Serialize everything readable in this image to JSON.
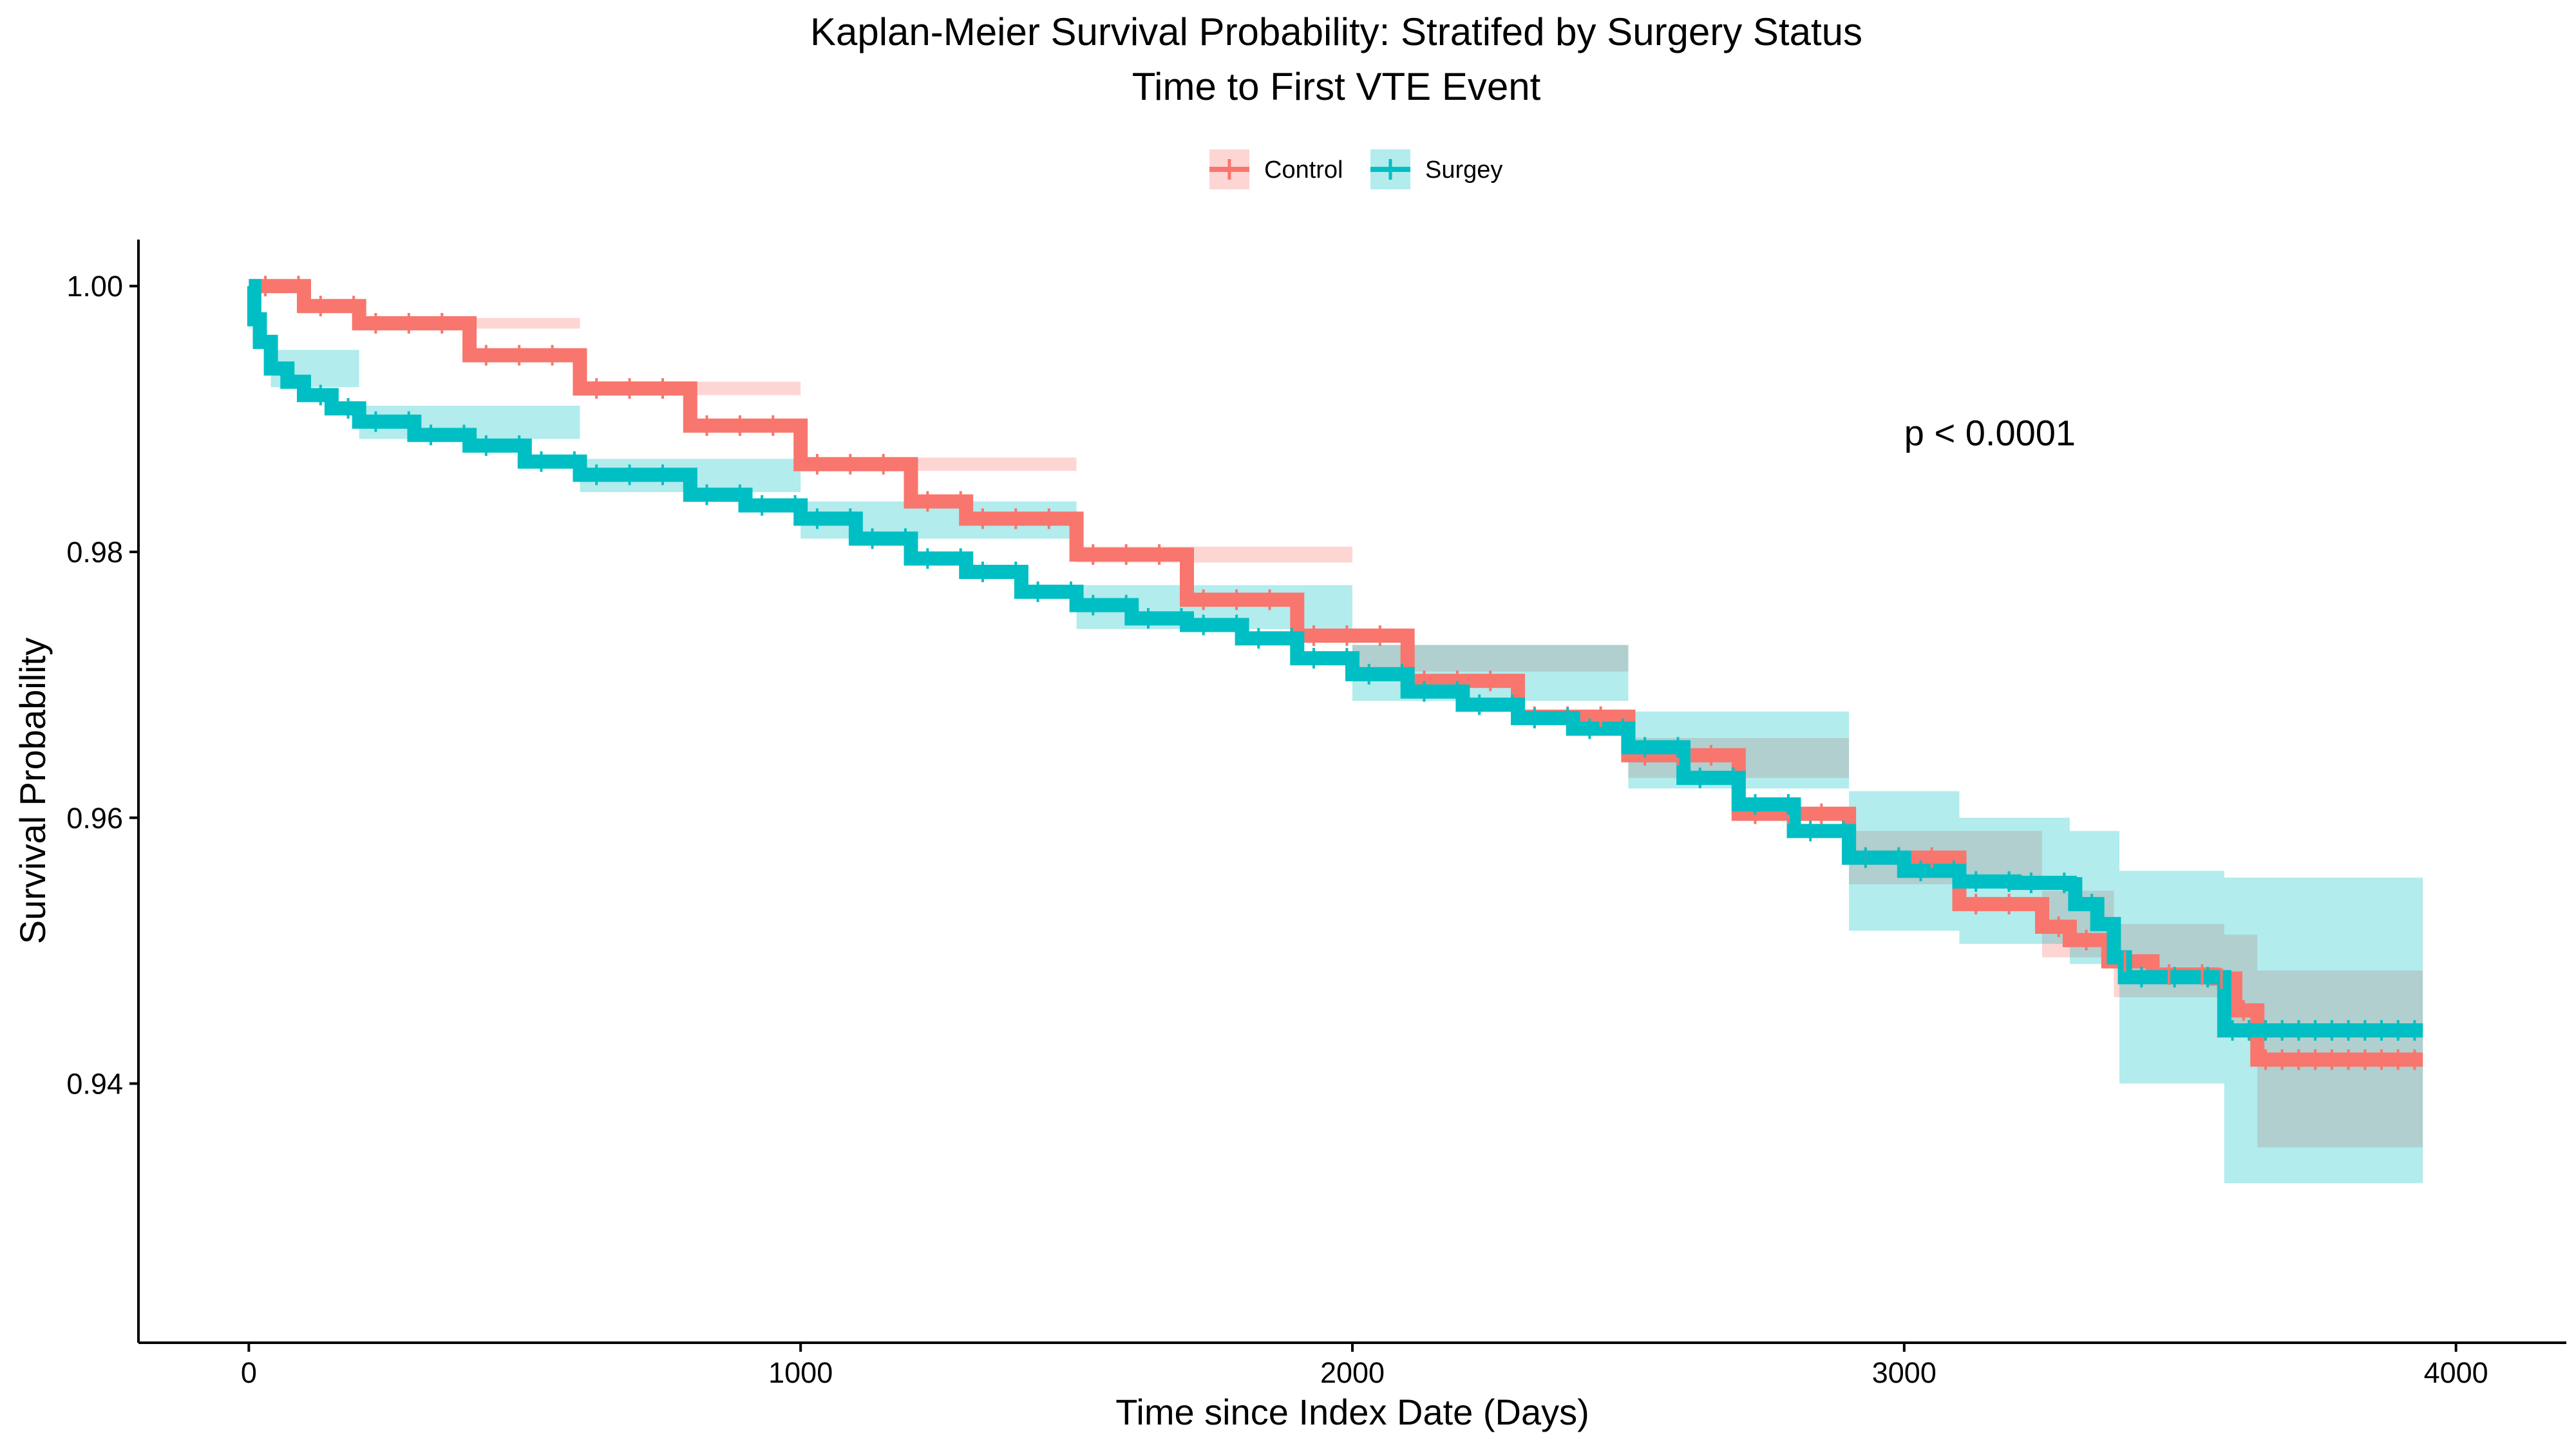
{
  "chart_data": {
    "type": "line",
    "subtype": "kaplan-meier step survival curve with confidence bands and censor marks",
    "title": "Kaplan-Meier Survival Probability: Stratifed by Surgery Status",
    "subtitle": "Time to First VTE Event",
    "xlabel": "Time since Index Date (Days)",
    "ylabel": "Survival Probability",
    "xlim": [
      -200,
      4200
    ],
    "ylim": [
      0.9205,
      1.0035
    ],
    "x_ticks": [
      0,
      1000,
      2000,
      3000,
      4000
    ],
    "x_tick_labels": [
      "0",
      "1000",
      "2000",
      "3000",
      "4000"
    ],
    "y_ticks": [
      0.94,
      0.96,
      0.98,
      1.0
    ],
    "y_tick_labels": [
      "0.94",
      "0.96",
      "0.98",
      "1.00"
    ],
    "grid": false,
    "legend_position": "top",
    "annotation": "p < 0.0001",
    "annotation_position": {
      "x": 3000,
      "y": 0.989
    },
    "series": [
      {
        "name": "Control",
        "color": "#F8766D",
        "band_color": "#F8766D",
        "points": [
          [
            0,
            1.0
          ],
          [
            100,
            0.9985
          ],
          [
            200,
            0.9972
          ],
          [
            400,
            0.9948
          ],
          [
            600,
            0.9923
          ],
          [
            800,
            0.9895
          ],
          [
            1000,
            0.9866
          ],
          [
            1200,
            0.9838
          ],
          [
            1300,
            0.9825
          ],
          [
            1500,
            0.9798
          ],
          [
            1700,
            0.9764
          ],
          [
            1900,
            0.9737
          ],
          [
            2100,
            0.9703
          ],
          [
            2300,
            0.9676
          ],
          [
            2500,
            0.9647
          ],
          [
            2700,
            0.9603
          ],
          [
            2900,
            0.957
          ],
          [
            3100,
            0.9535
          ],
          [
            3250,
            0.9518
          ],
          [
            3300,
            0.9508
          ],
          [
            3370,
            0.9492
          ],
          [
            3450,
            0.9482
          ],
          [
            3560,
            0.9479
          ],
          [
            3600,
            0.9455
          ],
          [
            3640,
            0.9418
          ],
          [
            3940,
            0.9418
          ]
        ],
        "ci_upper": [
          [
            0,
            1.0
          ],
          [
            200,
            0.9976
          ],
          [
            600,
            0.9928
          ],
          [
            1000,
            0.9871
          ],
          [
            1500,
            0.9804
          ],
          [
            2000,
            0.973
          ],
          [
            2500,
            0.966
          ],
          [
            2900,
            0.959
          ],
          [
            3250,
            0.9545
          ],
          [
            3380,
            0.952
          ],
          [
            3580,
            0.9512
          ],
          [
            3640,
            0.9485
          ],
          [
            3940,
            0.9485
          ]
        ],
        "ci_lower": [
          [
            0,
            1.0
          ],
          [
            200,
            0.9968
          ],
          [
            600,
            0.9918
          ],
          [
            1000,
            0.9861
          ],
          [
            1500,
            0.9792
          ],
          [
            2000,
            0.971
          ],
          [
            2500,
            0.963
          ],
          [
            2900,
            0.955
          ],
          [
            3250,
            0.9495
          ],
          [
            3380,
            0.9465
          ],
          [
            3580,
            0.944
          ],
          [
            3640,
            0.9352
          ],
          [
            3940,
            0.9352
          ]
        ]
      },
      {
        "name": "Surgey",
        "color": "#00BFC4",
        "band_color": "#00BFC4",
        "points": [
          [
            0,
            1.0
          ],
          [
            10,
            0.9975
          ],
          [
            20,
            0.9958
          ],
          [
            40,
            0.9938
          ],
          [
            70,
            0.9928
          ],
          [
            100,
            0.9918
          ],
          [
            150,
            0.9908
          ],
          [
            200,
            0.9898
          ],
          [
            300,
            0.9888
          ],
          [
            400,
            0.988
          ],
          [
            500,
            0.9868
          ],
          [
            600,
            0.9858
          ],
          [
            800,
            0.9843
          ],
          [
            900,
            0.9835
          ],
          [
            1000,
            0.9825
          ],
          [
            1100,
            0.981
          ],
          [
            1200,
            0.9795
          ],
          [
            1300,
            0.9785
          ],
          [
            1400,
            0.977
          ],
          [
            1500,
            0.976
          ],
          [
            1600,
            0.975
          ],
          [
            1700,
            0.9745
          ],
          [
            1800,
            0.9735
          ],
          [
            1900,
            0.972
          ],
          [
            2000,
            0.9708
          ],
          [
            2100,
            0.9695
          ],
          [
            2200,
            0.9685
          ],
          [
            2300,
            0.9675
          ],
          [
            2400,
            0.9667
          ],
          [
            2500,
            0.9653
          ],
          [
            2600,
            0.963
          ],
          [
            2700,
            0.961
          ],
          [
            2800,
            0.959
          ],
          [
            2900,
            0.957
          ],
          [
            3000,
            0.956
          ],
          [
            3100,
            0.9552
          ],
          [
            3200,
            0.9551
          ],
          [
            3300,
            0.955
          ],
          [
            3310,
            0.9535
          ],
          [
            3350,
            0.952
          ],
          [
            3380,
            0.9495
          ],
          [
            3400,
            0.948
          ],
          [
            3570,
            0.948
          ],
          [
            3580,
            0.944
          ],
          [
            3940,
            0.944
          ]
        ],
        "ci_upper": [
          [
            0,
            1.0
          ],
          [
            40,
            0.9952
          ],
          [
            200,
            0.991
          ],
          [
            600,
            0.987
          ],
          [
            1000,
            0.9838
          ],
          [
            1500,
            0.9775
          ],
          [
            2000,
            0.973
          ],
          [
            2500,
            0.968
          ],
          [
            2900,
            0.962
          ],
          [
            3100,
            0.96
          ],
          [
            3300,
            0.959
          ],
          [
            3390,
            0.956
          ],
          [
            3580,
            0.9555
          ],
          [
            3940,
            0.9555
          ]
        ],
        "ci_lower": [
          [
            0,
            1.0
          ],
          [
            40,
            0.9924
          ],
          [
            200,
            0.9885
          ],
          [
            600,
            0.9845
          ],
          [
            1000,
            0.981
          ],
          [
            1500,
            0.9742
          ],
          [
            2000,
            0.9688
          ],
          [
            2500,
            0.9622
          ],
          [
            2900,
            0.9515
          ],
          [
            3100,
            0.9505
          ],
          [
            3300,
            0.949
          ],
          [
            3390,
            0.94
          ],
          [
            3580,
            0.9325
          ],
          [
            3940,
            0.9325
          ]
        ]
      }
    ]
  }
}
